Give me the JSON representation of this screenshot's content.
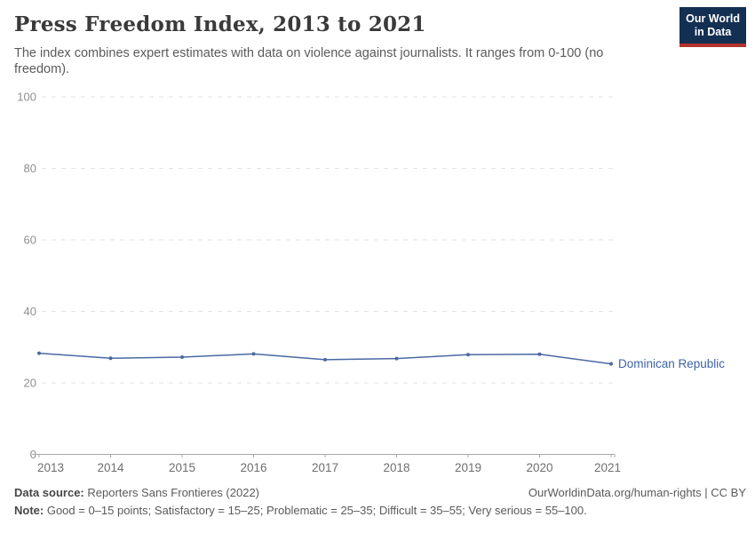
{
  "header": {
    "title": "Press Freedom Index, 2013 to 2021",
    "subtitle": "The index combines expert estimates with data on violence against journalists. It ranges from 0-100 (no freedom).",
    "logo": {
      "line1": "Our World",
      "line2": "in Data"
    }
  },
  "colors": {
    "logo_bg": "#132f52",
    "logo_underline": "#b5312c",
    "series_blue": "#4a69a2",
    "series_label_blue": "#3e63a4"
  },
  "chart_data": {
    "type": "line",
    "title": "Press Freedom Index, 2013 to 2021",
    "x": [
      2013,
      2014,
      2015,
      2016,
      2017,
      2018,
      2019,
      2020,
      2021
    ],
    "series": [
      {
        "name": "Dominican Republic",
        "color": "#4a69a2",
        "label_color": "#3e63a4",
        "values": [
          28.3,
          26.9,
          27.2,
          28.1,
          26.5,
          26.8,
          27.9,
          28.0,
          25.3
        ]
      }
    ],
    "xlabel": "",
    "ylabel": "",
    "ylim": [
      0,
      100
    ],
    "yticks": [
      0,
      20,
      40,
      60,
      80,
      100
    ],
    "grid": "horizontal-dashed",
    "legend": "inline-end-label"
  },
  "footer": {
    "datasource_label": "Data source:",
    "datasource_value": " Reporters Sans Frontieres (2022)",
    "url_text": "OurWorldinData.org/human-rights | CC BY",
    "note_label": "Note:",
    "note_value": " Good = 0–15 points; Satisfactory = 15–25; Problematic = 25–35; Difficult = 35–55; Very serious = 55–100."
  }
}
